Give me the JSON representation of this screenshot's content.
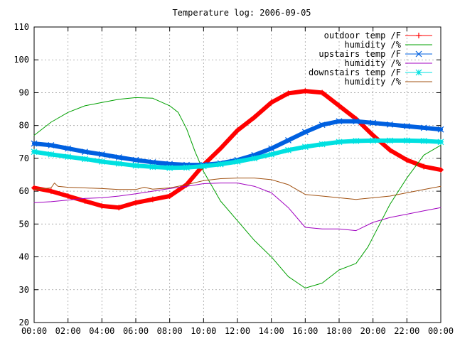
{
  "chart_data": {
    "type": "line",
    "title": "Temperature log: 2006-09-05",
    "xlabel": "",
    "ylabel": "",
    "xlim": [
      0,
      24
    ],
    "ylim": [
      20,
      110
    ],
    "x_ticks": [
      0,
      2,
      4,
      6,
      8,
      10,
      12,
      14,
      16,
      18,
      20,
      22,
      24
    ],
    "x_tick_labels": [
      "00:00",
      "02:00",
      "04:00",
      "06:00",
      "08:00",
      "10:00",
      "12:00",
      "14:00",
      "16:00",
      "18:00",
      "20:00",
      "22:00",
      "00:00"
    ],
    "y_ticks": [
      20,
      30,
      40,
      50,
      60,
      70,
      80,
      90,
      100,
      110
    ],
    "y_tick_labels": [
      "20",
      "30",
      "40",
      "50",
      "60",
      "70",
      "80",
      "90",
      "100",
      "110"
    ],
    "grid": true,
    "legend_position": "top-right",
    "series": [
      {
        "name": "outdoor temp /F",
        "color": "#ff0000",
        "marker": "plus",
        "x": [
          0,
          1,
          2,
          3,
          4,
          5,
          6,
          7,
          8,
          9,
          10,
          11,
          12,
          13,
          14,
          15,
          16,
          17,
          18,
          19,
          20,
          21,
          22,
          23,
          24
        ],
        "y": [
          61,
          60,
          58.5,
          57,
          55.5,
          55,
          56.5,
          57.5,
          58.5,
          62,
          68,
          73,
          78.5,
          82.5,
          87,
          89.8,
          90.5,
          90,
          86,
          82,
          77,
          72.5,
          69.5,
          67.5,
          66.5
        ]
      },
      {
        "name": "humidity /%",
        "color": "#00a000",
        "marker": "none",
        "x": [
          0,
          1,
          2,
          3,
          4,
          5,
          6,
          7,
          8,
          8.5,
          9,
          9.5,
          10,
          11,
          12,
          13,
          14,
          15,
          16,
          17,
          18,
          19,
          19.7,
          20.5,
          21,
          22,
          23,
          24
        ],
        "y": [
          77,
          81,
          84,
          86,
          87,
          88,
          88.5,
          88.3,
          86,
          84,
          79,
          72,
          66,
          57,
          51,
          45,
          40,
          34,
          30.5,
          32,
          36,
          38,
          43,
          51,
          56,
          64,
          71,
          74
        ]
      },
      {
        "name": "upstairs temp /F",
        "color": "#0060e0",
        "marker": "cross",
        "x": [
          0,
          1,
          2,
          3,
          4,
          5,
          6,
          7,
          8,
          9,
          10,
          11,
          12,
          13,
          14,
          15,
          16,
          17,
          18,
          19,
          20,
          21,
          22,
          23,
          24
        ],
        "y": [
          74.5,
          74,
          73,
          72,
          71.2,
          70.3,
          69.5,
          68.8,
          68.3,
          68,
          68,
          68.5,
          69.5,
          71,
          73,
          75.5,
          78,
          80.2,
          81.3,
          81.3,
          80.8,
          80.3,
          79.8,
          79.3,
          78.8
        ]
      },
      {
        "name": "humidity /%",
        "color": "#a000c0",
        "marker": "none",
        "x": [
          0,
          1,
          2,
          3,
          4,
          5,
          6,
          7,
          8,
          9,
          10,
          11,
          12,
          13,
          14,
          15,
          16,
          17,
          18,
          19,
          20,
          21,
          22,
          23,
          24
        ],
        "y": [
          56.5,
          56.8,
          57.3,
          57.8,
          58,
          58.5,
          59.2,
          60,
          60.8,
          61.5,
          62.3,
          62.5,
          62.5,
          61.5,
          59.5,
          55,
          49,
          48.5,
          48.5,
          48,
          50.5,
          52,
          53,
          54,
          55
        ]
      },
      {
        "name": "downstairs temp /F",
        "color": "#00e0e0",
        "marker": "star",
        "x": [
          0,
          1,
          2,
          3,
          4,
          5,
          6,
          7,
          8,
          9,
          10,
          11,
          12,
          13,
          14,
          15,
          16,
          17,
          18,
          19,
          20,
          21,
          22,
          23,
          24
        ],
        "y": [
          72,
          71.2,
          70.5,
          69.8,
          69,
          68.4,
          67.8,
          67.4,
          67.1,
          67.2,
          67.6,
          68.2,
          69,
          70,
          71.2,
          72.5,
          73.5,
          74.3,
          75,
          75.3,
          75.4,
          75.4,
          75.4,
          75.3,
          75
        ]
      },
      {
        "name": "humidity /%",
        "color": "#a05010",
        "marker": "none",
        "x": [
          0,
          1,
          1.2,
          1.4,
          2,
          3,
          4,
          5,
          6,
          6.5,
          7,
          8,
          9,
          10,
          11,
          12,
          13,
          14,
          15,
          16,
          17,
          18,
          19,
          20,
          21,
          22,
          23,
          24
        ],
        "y": [
          60.5,
          61,
          62.5,
          61.5,
          61.2,
          61,
          60.8,
          60.5,
          60.5,
          61.2,
          60.6,
          61,
          62,
          63.2,
          63.8,
          64,
          64,
          63.5,
          62,
          59,
          58.5,
          58,
          57.5,
          58,
          58.5,
          59.5,
          60.5,
          61.5
        ]
      }
    ]
  }
}
